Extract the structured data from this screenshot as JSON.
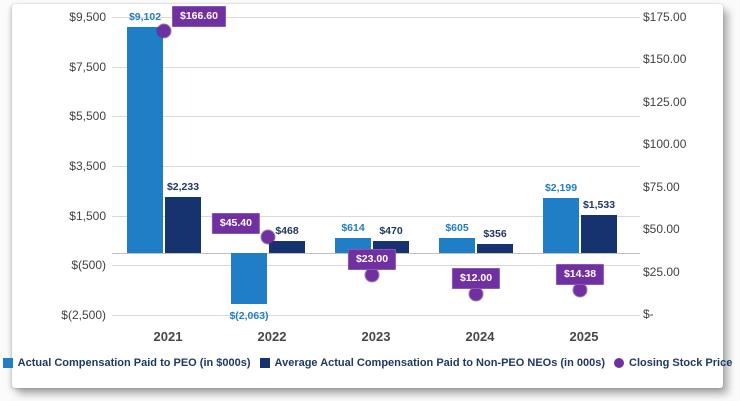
{
  "chart_data": {
    "type": "bar",
    "combo": "dual-axis bar + scatter points",
    "categories": [
      "2021",
      "2022",
      "2023",
      "2024",
      "2025"
    ],
    "series": [
      {
        "name": "Actual Compensation Paid to PEO (in $000s)",
        "kind": "bar",
        "axis": "left",
        "color": "#1f7ec6",
        "label_color": "#1f7ec6",
        "values": [
          9102,
          -2063,
          614,
          605,
          2199
        ],
        "labels": [
          "$9,102",
          "$(2,063)",
          "$614",
          "$605",
          "$2,199"
        ]
      },
      {
        "name": "Average Actual Compensation Paid to Non-PEO NEOs (in 000s)",
        "kind": "bar",
        "axis": "left",
        "color": "#16326f",
        "label_color": "#1f3864",
        "values": [
          2233,
          468,
          470,
          356,
          1533
        ],
        "labels": [
          "$2,233",
          "$468",
          "$470",
          "$356",
          "$1,533"
        ]
      },
      {
        "name": "Closing Stock Price",
        "kind": "scatter",
        "axis": "right",
        "color": "#7030a0",
        "label_color": "#ffffff",
        "values": [
          166.6,
          45.4,
          23.0,
          12.0,
          14.38
        ],
        "labels": [
          "$166.60",
          "$45.40",
          "$23.00",
          "$12.00",
          "$14.38"
        ]
      }
    ],
    "left_axis": {
      "min": -2500,
      "max": 9500,
      "ticks": [
        {
          "value": 9500,
          "label": "$9,500"
        },
        {
          "value": 7500,
          "label": "$7,500"
        },
        {
          "value": 5500,
          "label": "$5,500"
        },
        {
          "value": 3500,
          "label": "$3,500"
        },
        {
          "value": 1500,
          "label": "$1,500"
        },
        {
          "value": -500,
          "label": "$(500)"
        },
        {
          "value": -2500,
          "label": "$(2,500)"
        }
      ]
    },
    "right_axis": {
      "min": 0,
      "max": 175,
      "ticks": [
        {
          "value": 175,
          "label": "$175.00"
        },
        {
          "value": 150,
          "label": "$150.00"
        },
        {
          "value": 125,
          "label": "$125.00"
        },
        {
          "value": 100,
          "label": "$100.00"
        },
        {
          "value": 75,
          "label": "$75.00"
        },
        {
          "value": 50,
          "label": "$50.00"
        },
        {
          "value": 25,
          "label": "$25.00"
        },
        {
          "value": 0,
          "label": "$-"
        }
      ]
    },
    "legend_position": "bottom",
    "grid": true,
    "title": ""
  },
  "colors": {
    "peo_bar": "#1f7ec6",
    "neo_bar": "#16326f",
    "stock_purple": "#7030a0",
    "gridline": "#d9d9d9",
    "zero_axis": "#bfbfbf",
    "axis_text": "#414141",
    "legend_text": "#1f3864",
    "card_background": "#ffffff"
  }
}
